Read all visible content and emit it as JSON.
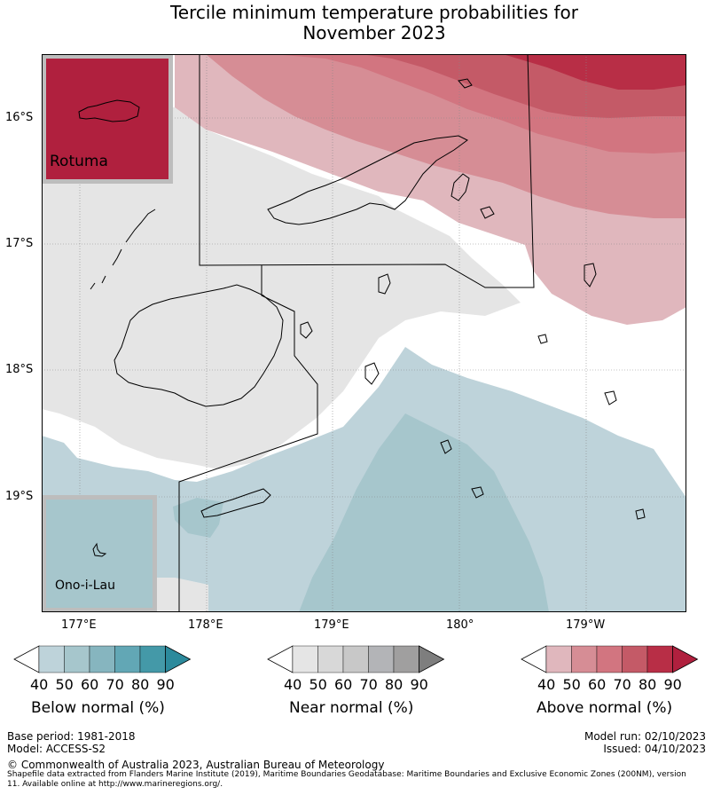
{
  "title": [
    "Tercile minimum temperature probabilities for",
    "November 2023"
  ],
  "map": {
    "latitude_labels": [
      "16°S",
      "17°S",
      "18°S",
      "19°S"
    ],
    "longitude_labels": [
      "177°E",
      "178°E",
      "179°E",
      "180°",
      "179°W"
    ],
    "insets": [
      {
        "name": "Rotuma",
        "category": "above",
        "level": "80"
      },
      {
        "name": "Ono-i-Lau",
        "category": "below",
        "level": "40"
      }
    ]
  },
  "legend": {
    "below": {
      "title": "Below normal (%)",
      "ticks": [
        "40",
        "50",
        "60",
        "70",
        "80",
        "90"
      ],
      "colors": [
        "#ffffff",
        "#bed3da",
        "#a6c6cc",
        "#86b5bf",
        "#62a7b5",
        "#4499a8",
        "#2c8a9c"
      ]
    },
    "near": {
      "title": "Near normal (%)",
      "ticks": [
        "40",
        "50",
        "60",
        "70",
        "80",
        "90"
      ],
      "colors": [
        "#ffffff",
        "#e5e5e5",
        "#d8d8d8",
        "#c8c8c8",
        "#b3b4b7",
        "#a09f9f",
        "#7e7e7e"
      ]
    },
    "above": {
      "title": "Above normal (%)",
      "ticks": [
        "40",
        "50",
        "60",
        "70",
        "80",
        "90"
      ],
      "colors": [
        "#ffffff",
        "#e0b7bd",
        "#d68d95",
        "#d27580",
        "#c45a67",
        "#b82e46",
        "#b0203e"
      ]
    }
  },
  "footer": {
    "base_period": "Base period: 1981-2018",
    "model": "Model: ACCESS-S2",
    "model_run": "Model run: 02/10/2023",
    "issued": "Issued: 04/10/2023",
    "copyright": "© Commonwealth of Australia 2023, Australian Bureau of Meteorology",
    "shapefile_note": [
      "Shapefile data extracted from Flanders Marine Institute (2019), Maritime Boundaries Geodatabase: Maritime Boundaries and Exclusive Economic Zones (200NM), version",
      "11. Available online at http://www.marineregions.org/."
    ]
  }
}
